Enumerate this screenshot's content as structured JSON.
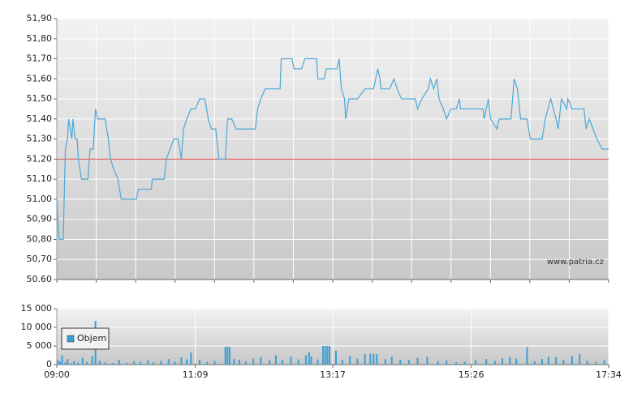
{
  "chart_data": [
    {
      "type": "line",
      "x": [
        "09:00",
        "09:02",
        "09:06",
        "09:08",
        "09:10",
        "09:11",
        "09:14",
        "09:15",
        "09:17",
        "09:19",
        "09:20",
        "09:23",
        "09:29",
        "09:31",
        "09:34",
        "09:36",
        "09:38",
        "09:45",
        "09:48",
        "09:50",
        "09:53",
        "09:57",
        "10:00",
        "10:14",
        "10:16",
        "10:28",
        "10:29",
        "10:40",
        "10:42",
        "10:49",
        "10:53",
        "10:56",
        "10:58",
        "11:01",
        "11:05",
        "11:09",
        "11:13",
        "11:18",
        "11:21",
        "11:24",
        "11:28",
        "11:31",
        "11:37",
        "11:39",
        "11:43",
        "11:47",
        "11:52",
        "12:05",
        "12:07",
        "12:10",
        "12:14",
        "12:28",
        "12:29",
        "12:39",
        "12:41",
        "12:48",
        "12:51",
        "13:02",
        "13:03",
        "13:09",
        "13:11",
        "13:21",
        "13:23",
        "13:25",
        "13:28",
        "13:29",
        "13:32",
        "13:40",
        "13:47",
        "13:55",
        "13:59",
        "14:01",
        "14:02",
        "14:10",
        "14:14",
        "14:17",
        "14:21",
        "14:34",
        "14:36",
        "14:40",
        "14:46",
        "14:48",
        "14:51",
        "14:54",
        "14:56",
        "15:00",
        "15:03",
        "15:07",
        "15:12",
        "15:15",
        "15:16",
        "15:37",
        "15:38",
        "15:42",
        "15:44",
        "15:50",
        "15:52",
        "16:03",
        "16:06",
        "16:09",
        "16:12",
        "16:18",
        "16:21",
        "16:32",
        "16:35",
        "16:40",
        "16:45",
        "16:47",
        "16:50",
        "16:55",
        "16:56",
        "17:00",
        "17:11",
        "17:13",
        "17:16",
        "17:23",
        "17:28",
        "17:34"
      ],
      "values": [
        51.0,
        50.8,
        50.8,
        51.25,
        51.3,
        51.4,
        51.3,
        51.4,
        51.3,
        51.3,
        51.2,
        51.1,
        51.1,
        51.25,
        51.25,
        51.45,
        51.4,
        51.4,
        51.3,
        51.2,
        51.15,
        51.1,
        51.0,
        51.0,
        51.05,
        51.05,
        51.1,
        51.1,
        51.2,
        51.3,
        51.3,
        51.2,
        51.35,
        51.4,
        51.45,
        51.45,
        51.5,
        51.5,
        51.4,
        51.35,
        51.35,
        51.2,
        51.2,
        51.4,
        51.4,
        51.35,
        51.35,
        51.35,
        51.45,
        51.5,
        51.55,
        51.55,
        51.7,
        51.7,
        51.65,
        51.65,
        51.7,
        51.7,
        51.6,
        51.6,
        51.65,
        51.65,
        51.7,
        51.55,
        51.5,
        51.4,
        51.5,
        51.5,
        51.55,
        51.55,
        51.65,
        51.6,
        51.55,
        51.55,
        51.6,
        51.55,
        51.5,
        51.5,
        51.45,
        51.5,
        51.55,
        51.6,
        51.55,
        51.6,
        51.5,
        51.45,
        51.4,
        51.45,
        51.45,
        51.5,
        51.45,
        51.45,
        51.4,
        51.5,
        51.4,
        51.35,
        51.4,
        51.4,
        51.6,
        51.55,
        51.4,
        51.4,
        51.3,
        51.3,
        51.4,
        51.5,
        51.4,
        51.35,
        51.5,
        51.45,
        51.5,
        51.45,
        51.45,
        51.35,
        51.4,
        51.3,
        51.25,
        51.25
      ],
      "color": "#4aa8d8",
      "xlim": [
        "09:00",
        "17:34"
      ],
      "ylim": [
        50.6,
        51.9
      ],
      "yticks": [
        {
          "value": 50.6,
          "label": "50.60"
        },
        {
          "value": 50.7,
          "label": "50,70"
        },
        {
          "value": 50.8,
          "label": "50,80"
        },
        {
          "value": 50.9,
          "label": "50,90"
        },
        {
          "value": 51.0,
          "label": "51,00"
        },
        {
          "value": 51.1,
          "label": "51,10"
        },
        {
          "value": 51.2,
          "label": "51,20"
        },
        {
          "value": 51.3,
          "label": "51,30"
        },
        {
          "value": 51.4,
          "label": "51,40"
        },
        {
          "value": 51.5,
          "label": "51,50"
        },
        {
          "value": 51.6,
          "label": "51,60"
        },
        {
          "value": 51.7,
          "label": "51,70"
        },
        {
          "value": 51.8,
          "label": "51,80"
        },
        {
          "value": 51.9,
          "label": "51,90"
        }
      ],
      "reference_line": {
        "value": 51.2,
        "color": "#e0463c"
      },
      "annotation": "www.patria.cz",
      "grid": true
    },
    {
      "type": "bar",
      "x": [
        "09:01",
        "09:03",
        "09:05",
        "09:08",
        "09:10",
        "09:13",
        "09:16",
        "09:20",
        "09:24",
        "09:28",
        "09:33",
        "09:36",
        "09:40",
        "09:45",
        "09:52",
        "09:58",
        "10:05",
        "10:12",
        "10:18",
        "10:25",
        "10:30",
        "10:37",
        "10:44",
        "10:50",
        "10:56",
        "11:01",
        "11:05",
        "11:13",
        "11:20",
        "11:27",
        "11:37",
        "11:39",
        "11:41",
        "11:45",
        "11:50",
        "11:56",
        "12:03",
        "12:10",
        "12:18",
        "12:24",
        "12:30",
        "12:38",
        "12:45",
        "12:52",
        "12:55",
        "12:57",
        "13:03",
        "13:08",
        "13:10",
        "13:12",
        "13:14",
        "13:20",
        "13:26",
        "13:33",
        "13:40",
        "13:47",
        "13:52",
        "13:55",
        "13:58",
        "14:06",
        "14:12",
        "14:20",
        "14:28",
        "14:36",
        "14:45",
        "14:55",
        "15:03",
        "15:12",
        "15:20",
        "15:30",
        "15:40",
        "15:48",
        "15:55",
        "16:02",
        "16:08",
        "16:18",
        "16:25",
        "16:32",
        "16:38",
        "16:45",
        "16:52",
        "17:00",
        "17:07",
        "17:14",
        "17:22",
        "17:30"
      ],
      "series": [
        {
          "name": "Objem",
          "color": "#3a9fd6",
          "values": [
            1200,
            800,
            2500,
            600,
            1500,
            400,
            900,
            500,
            1800,
            700,
            2200,
            11700,
            1000,
            600,
            400,
            1300,
            500,
            900,
            700,
            1200,
            600,
            1000,
            1500,
            800,
            2000,
            1400,
            3200,
            1300,
            700,
            1000,
            4800,
            4800,
            4700,
            1500,
            1300,
            900,
            1600,
            2000,
            1200,
            2500,
            1300,
            2100,
            1400,
            2500,
            3300,
            2200,
            1400,
            5000,
            5000,
            5000,
            5000,
            3700,
            1300,
            2300,
            1600,
            2800,
            2900,
            2900,
            2800,
            1500,
            2100,
            1300,
            1200,
            1800,
            2100,
            900,
            1100,
            600,
            800,
            1200,
            1500,
            1000,
            1700,
            2000,
            1600,
            4700,
            900,
            1500,
            2100,
            2000,
            1300,
            2200,
            2800,
            1000,
            700,
            1200
          ]
        }
      ],
      "xlim": [
        "09:00",
        "17:34"
      ],
      "xticks": [
        "09:00",
        "11:09",
        "13:17",
        "15:26",
        "17:34"
      ],
      "ylim": [
        0,
        15000
      ],
      "yticks": [
        {
          "value": 0,
          "label": "0"
        },
        {
          "value": 5000,
          "label": "5 000"
        },
        {
          "value": 10000,
          "label": "10 000"
        },
        {
          "value": 15000,
          "label": "15 000"
        }
      ],
      "legend": "upper left",
      "grid": true
    }
  ]
}
